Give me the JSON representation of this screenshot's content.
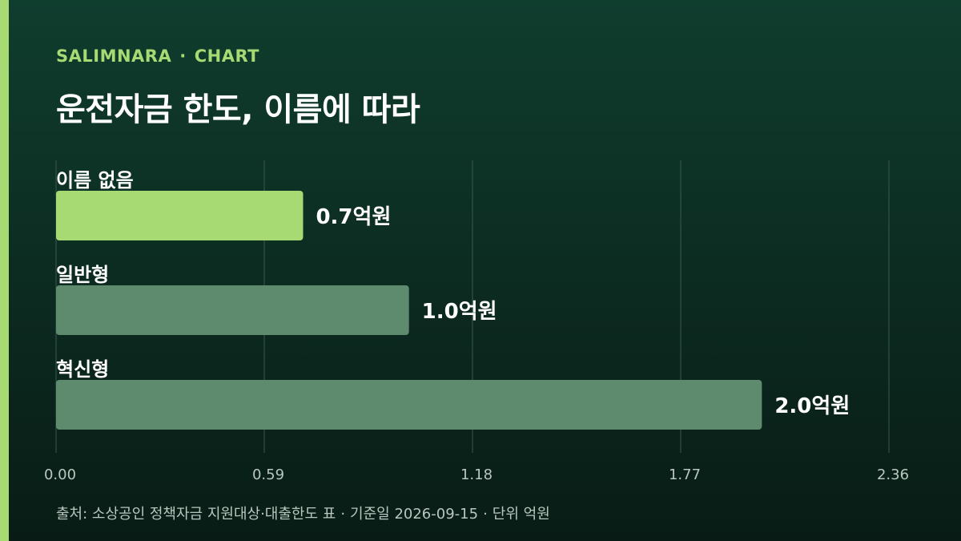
{
  "header": {
    "brand": "SALIMNARA",
    "separator": "·",
    "kicker": "CHART",
    "title": "운전자금 한도, 이름에 따라"
  },
  "chart_data": {
    "type": "bar",
    "orientation": "horizontal",
    "title": "운전자금 한도, 이름에 따라",
    "categories": [
      "이름 없음",
      "일반형",
      "혁신형"
    ],
    "values": [
      0.7,
      1.0,
      2.0
    ],
    "value_labels": [
      "0.7억원",
      "1.0억원",
      "2.0억원"
    ],
    "highlight_index": 0,
    "x_ticks": [
      "0.00",
      "0.59",
      "1.18",
      "1.77",
      "2.36"
    ],
    "xlim": [
      0,
      2.36
    ],
    "grid": true,
    "colors": {
      "highlight": "#a8da74",
      "bar": "#5e8b6e",
      "grid": "#3a5a4a",
      "label": "#ffffff",
      "tick": "#b9c7bf"
    }
  },
  "footer": {
    "source": "출처: 소상공인 정책자금 지원대상·대출한도 표",
    "date": "기준일 2026-09-15",
    "unit": "단위 억원",
    "separator": "·"
  }
}
